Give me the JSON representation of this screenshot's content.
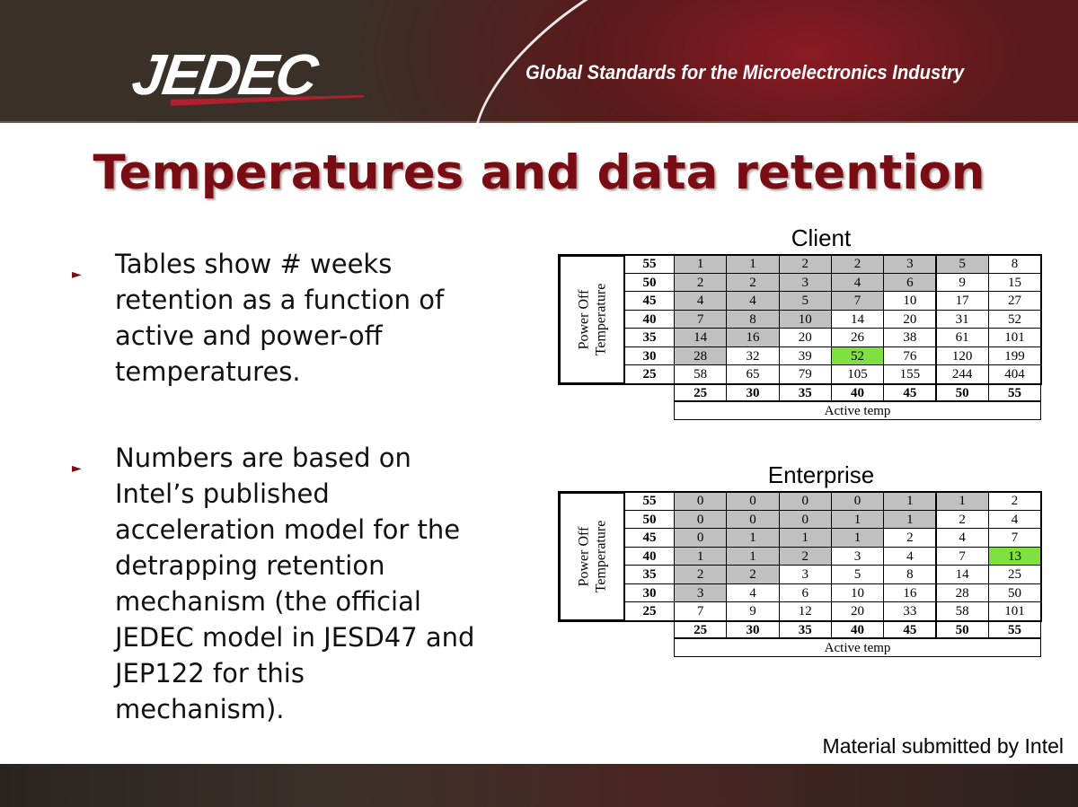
{
  "header": {
    "logo": "JEDEC",
    "tagline": "Global Standards for the Microelectronics Industry"
  },
  "title": "Temperatures and data retention",
  "bullets": [
    {
      "icon": "triangle-bullet-icon",
      "text": "Tables show # weeks\nretention as a function of\nactive and power-off\ntemperatures."
    },
    {
      "icon": "triangle-bullet-icon",
      "text": "Numbers are based on\nIntel’s published\nacceleration model for the\ndetrapping retention\nmechanism (the official\nJEDEC model in JESD47 and\nJEP122 for this\nmechanism)."
    }
  ],
  "colors": {
    "shaded": "#c0c0c0",
    "highlight": "#80e040",
    "title": "#7a0c14"
  },
  "tables": [
    {
      "title": "Client",
      "row_label": "Power Off\nTemperature",
      "col_label": "Active temp",
      "row_temps": [
        "55",
        "50",
        "45",
        "40",
        "35",
        "30",
        "25"
      ],
      "col_temps": [
        "25",
        "30",
        "35",
        "40",
        "45",
        "50",
        "55"
      ],
      "values": [
        [
          "1",
          "1",
          "2",
          "2",
          "3",
          "5",
          "8"
        ],
        [
          "2",
          "2",
          "3",
          "4",
          "6",
          "9",
          "15"
        ],
        [
          "4",
          "4",
          "5",
          "7",
          "10",
          "17",
          "27"
        ],
        [
          "7",
          "8",
          "10",
          "14",
          "20",
          "31",
          "52"
        ],
        [
          "14",
          "16",
          "20",
          "26",
          "38",
          "61",
          "101"
        ],
        [
          "28",
          "32",
          "39",
          "52",
          "76",
          "120",
          "199"
        ],
        [
          "58",
          "65",
          "79",
          "105",
          "155",
          "244",
          "404"
        ]
      ],
      "shaded_counts": [
        6,
        5,
        4,
        3,
        2,
        1,
        0
      ],
      "highlight": {
        "row": 5,
        "col": 3
      }
    },
    {
      "title": "Enterprise",
      "row_label": "Power Off\nTemperature",
      "col_label": "Active temp",
      "row_temps": [
        "55",
        "50",
        "45",
        "40",
        "35",
        "30",
        "25"
      ],
      "col_temps": [
        "25",
        "30",
        "35",
        "40",
        "45",
        "50",
        "55"
      ],
      "values": [
        [
          "0",
          "0",
          "0",
          "0",
          "1",
          "1",
          "2"
        ],
        [
          "0",
          "0",
          "0",
          "1",
          "1",
          "2",
          "4"
        ],
        [
          "0",
          "1",
          "1",
          "1",
          "2",
          "4",
          "7"
        ],
        [
          "1",
          "1",
          "2",
          "3",
          "4",
          "7",
          "13"
        ],
        [
          "2",
          "2",
          "3",
          "5",
          "8",
          "14",
          "25"
        ],
        [
          "3",
          "4",
          "6",
          "10",
          "16",
          "28",
          "50"
        ],
        [
          "7",
          "9",
          "12",
          "20",
          "33",
          "58",
          "101"
        ]
      ],
      "shaded_counts": [
        6,
        5,
        4,
        3,
        2,
        1,
        0
      ],
      "highlight": {
        "row": 3,
        "col": 6
      }
    }
  ],
  "footer_note": "Material submitted by Intel"
}
